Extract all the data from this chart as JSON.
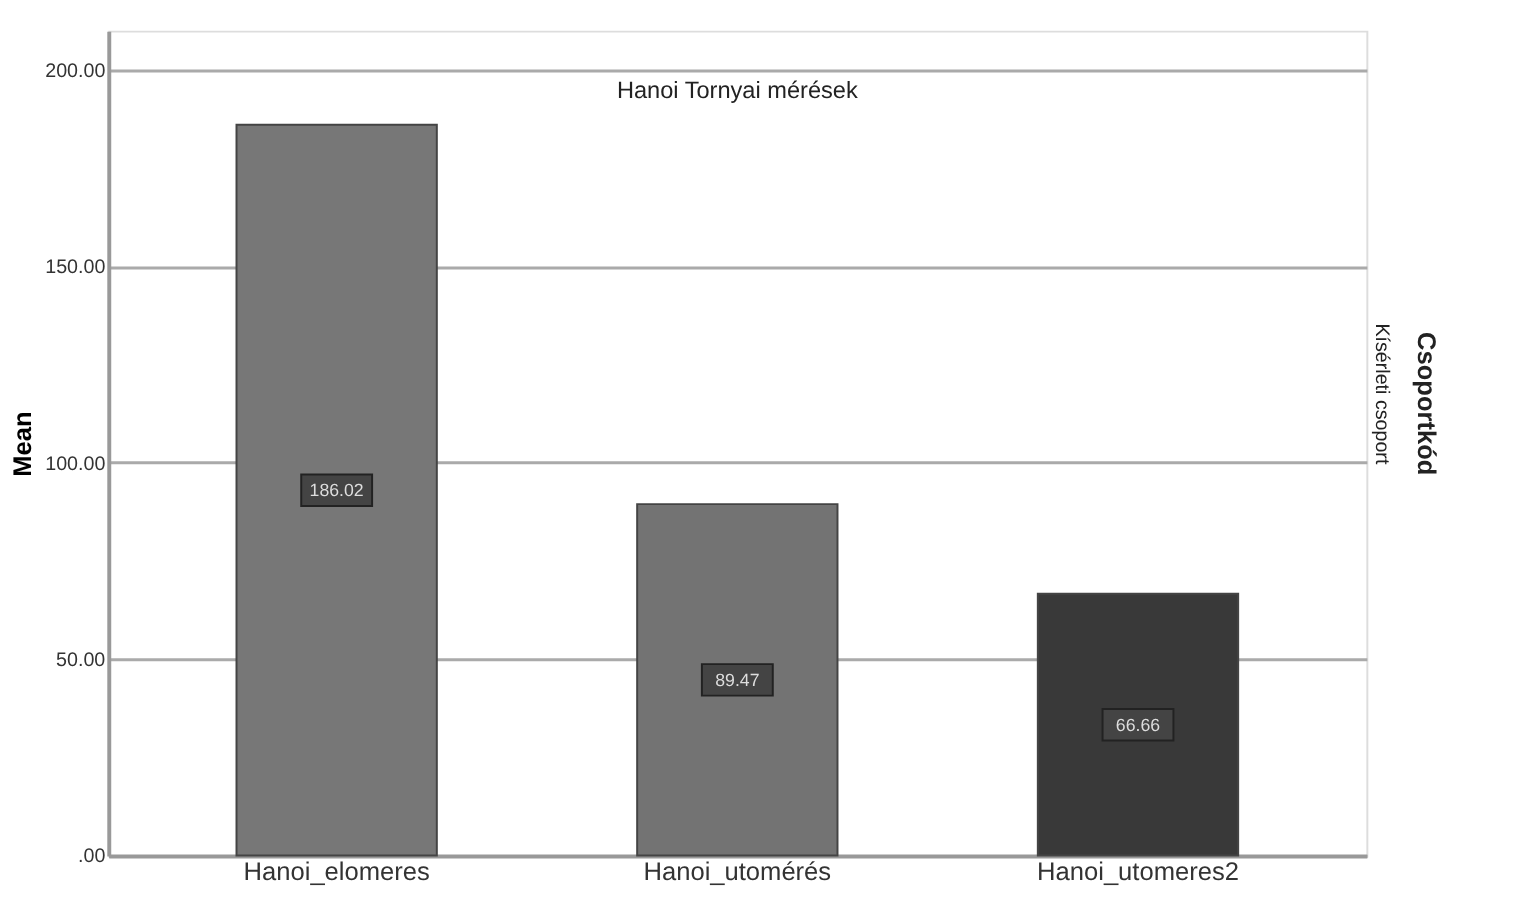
{
  "chart_data": {
    "type": "bar",
    "title": "Hanoi Tornyai mérések",
    "ylabel": "Mean",
    "categories": [
      "Hanoi_elomeres",
      "Hanoi_utomérés",
      "Hanoi_utomeres2"
    ],
    "values": [
      186.02,
      89.47,
      66.66
    ],
    "colors": [
      "#777777",
      "#737373",
      "#393939"
    ],
    "data_labels": true,
    "ylim": [
      0,
      210
    ],
    "yticks": [
      {
        "value": 0,
        "label": ".00"
      },
      {
        "value": 50,
        "label": "50.00"
      },
      {
        "value": 100,
        "label": "100.00"
      },
      {
        "value": 150,
        "label": "150.00"
      },
      {
        "value": 200,
        "label": "200.00"
      }
    ],
    "grid": "y",
    "annotations": [
      "Csoportkód",
      "Kísérleti csoport"
    ]
  }
}
